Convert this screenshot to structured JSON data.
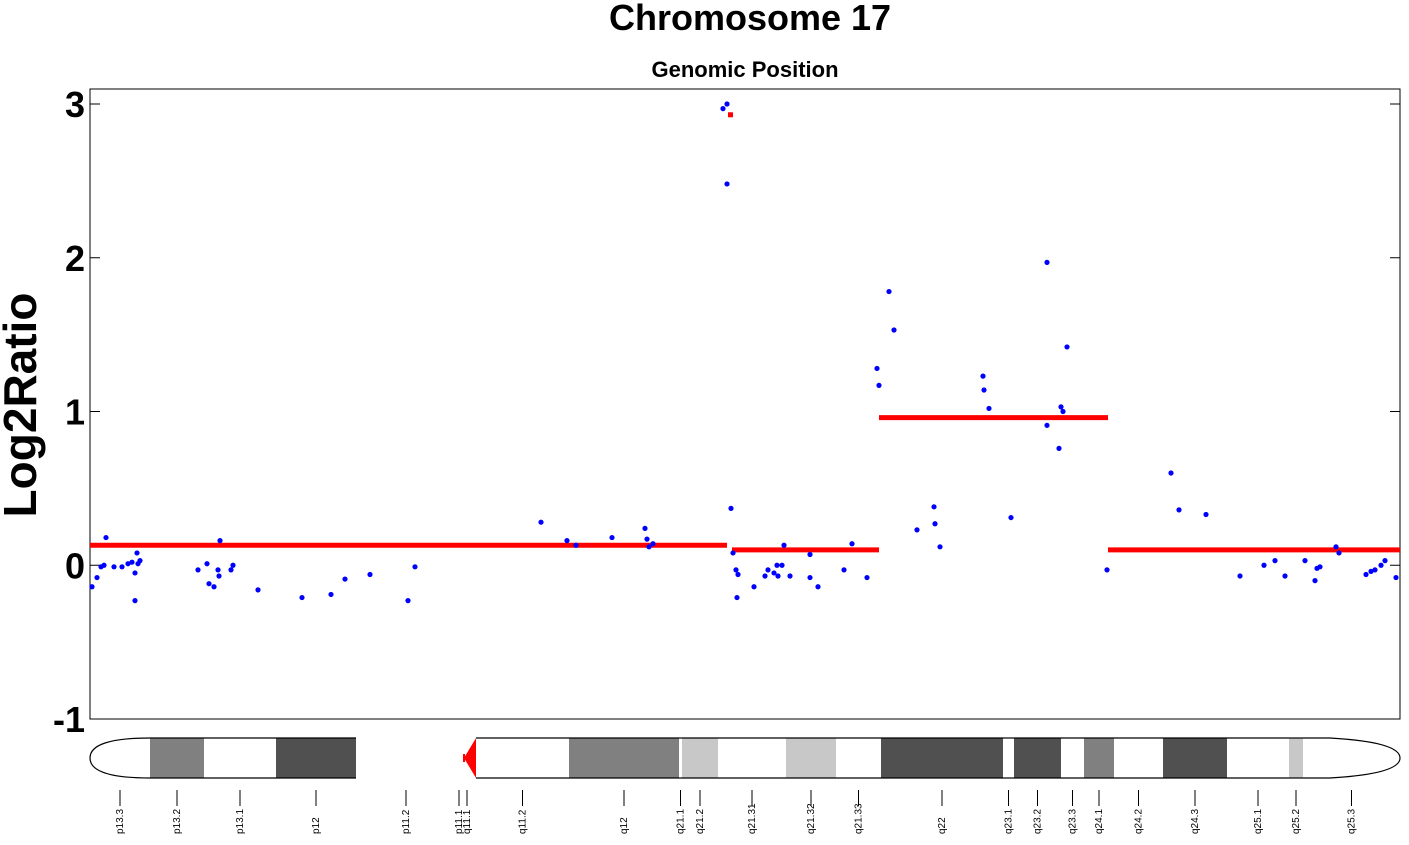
{
  "chart_data": {
    "type": "scatter",
    "title": "Chromosome 17",
    "subtitle": "Genomic Position",
    "xlabel": "Genomic Position",
    "ylabel": "Log2Ratio",
    "xlim": [
      0,
      1310
    ],
    "ylim": [
      -1,
      3
    ],
    "yticks": [
      -1,
      0,
      1,
      2,
      3
    ],
    "ytick_labels": [
      "-1",
      "0",
      "1",
      "2",
      "3"
    ],
    "grid": false,
    "colors": {
      "points": "#0000ff",
      "segments": "#ff0000",
      "centromere": "#ff0000"
    },
    "points": [
      [
        2,
        -0.14
      ],
      [
        7,
        -0.08
      ],
      [
        11,
        -0.01
      ],
      [
        14,
        0
      ],
      [
        16,
        0.18
      ],
      [
        24,
        -0.01
      ],
      [
        32,
        -0.01
      ],
      [
        38,
        0.01
      ],
      [
        42,
        0.02
      ],
      [
        45,
        -0.23
      ],
      [
        45,
        -0.05
      ],
      [
        47,
        0.08
      ],
      [
        48,
        0.01
      ],
      [
        50,
        0.03
      ],
      [
        108,
        -0.03
      ],
      [
        117,
        0.01
      ],
      [
        119,
        -0.12
      ],
      [
        124,
        -0.14
      ],
      [
        128,
        -0.03
      ],
      [
        129,
        -0.07
      ],
      [
        130,
        0.16
      ],
      [
        141,
        -0.03
      ],
      [
        143,
        0
      ],
      [
        168,
        -0.16
      ],
      [
        212,
        -0.21
      ],
      [
        241,
        -0.19
      ],
      [
        255,
        -0.09
      ],
      [
        280,
        -0.06
      ],
      [
        318,
        -0.23
      ],
      [
        325,
        -0.01
      ],
      [
        451,
        0.28
      ],
      [
        477,
        0.16
      ],
      [
        486,
        0.13
      ],
      [
        522,
        0.18
      ],
      [
        555,
        0.24
      ],
      [
        557,
        0.17
      ],
      [
        559,
        0.12
      ],
      [
        563,
        0.14
      ],
      [
        633,
        2.97
      ],
      [
        637,
        3.0
      ],
      [
        637,
        2.48
      ],
      [
        641,
        0.37
      ],
      [
        643,
        0.08
      ],
      [
        646,
        -0.03
      ],
      [
        648,
        -0.06
      ],
      [
        647,
        -0.21
      ],
      [
        664,
        -0.14
      ],
      [
        675,
        -0.07
      ],
      [
        678,
        -0.03
      ],
      [
        684,
        -0.05
      ],
      [
        687,
        0
      ],
      [
        688,
        -0.07
      ],
      [
        692,
        0
      ],
      [
        694,
        0.13
      ],
      [
        700,
        -0.07
      ],
      [
        720,
        0.07
      ],
      [
        720,
        -0.08
      ],
      [
        728,
        -0.14
      ],
      [
        754,
        -0.03
      ],
      [
        762,
        0.14
      ],
      [
        777,
        -0.08
      ],
      [
        787,
        1.28
      ],
      [
        789,
        1.17
      ],
      [
        799,
        1.78
      ],
      [
        804,
        1.53
      ],
      [
        827,
        0.23
      ],
      [
        844,
        0.38
      ],
      [
        845,
        0.27
      ],
      [
        850,
        0.12
      ],
      [
        893,
        1.23
      ],
      [
        894,
        1.14
      ],
      [
        899,
        1.02
      ],
      [
        921,
        0.31
      ],
      [
        957,
        1.97
      ],
      [
        957,
        0.91
      ],
      [
        969,
        0.76
      ],
      [
        971,
        1.03
      ],
      [
        973,
        1.0
      ],
      [
        977,
        1.42
      ],
      [
        1017,
        -0.03
      ],
      [
        1081,
        0.6
      ],
      [
        1089,
        0.36
      ],
      [
        1116,
        0.33
      ],
      [
        1150,
        -0.07
      ],
      [
        1174,
        0
      ],
      [
        1185,
        0.03
      ],
      [
        1195,
        -0.07
      ],
      [
        1215,
        0.03
      ],
      [
        1225,
        -0.1
      ],
      [
        1227,
        -0.02
      ],
      [
        1230,
        -0.01
      ],
      [
        1246,
        0.12
      ],
      [
        1249,
        0.08
      ],
      [
        1276,
        -0.06
      ],
      [
        1281,
        -0.04
      ],
      [
        1285,
        -0.03
      ],
      [
        1291,
        0
      ],
      [
        1295,
        0.03
      ],
      [
        1306,
        -0.08
      ]
    ],
    "segments": [
      {
        "start": 0,
        "end": 637,
        "value": 0.13
      },
      {
        "start": 638,
        "end": 643,
        "value": 2.93
      },
      {
        "start": 642,
        "end": 789,
        "value": 0.1
      },
      {
        "start": 789,
        "end": 1018,
        "value": 0.96
      },
      {
        "start": 1018,
        "end": 1310,
        "value": 0.1
      }
    ],
    "ideogram": {
      "stain_colors": {
        "gneg": "#ffffff",
        "gpos25": "#c8c8c8",
        "gpos50": "#808080",
        "gpos75": "#505050",
        "acen": "#ff0000"
      },
      "bands": [
        {
          "name": "p13.3",
          "start": 0,
          "end": 60,
          "stain": "gneg"
        },
        {
          "name": "p13.2",
          "start": 60,
          "end": 114,
          "stain": "gpos50"
        },
        {
          "name": "p13.1",
          "start": 114,
          "end": 186,
          "stain": "gneg"
        },
        {
          "name": "p12",
          "start": 186,
          "end": 266,
          "stain": "gpos75"
        },
        {
          "name": "p11.2",
          "start": 266,
          "end": 366,
          "stain": "gneg"
        },
        {
          "name": "p11.1",
          "start": 366,
          "end": 374,
          "stain": "acen"
        },
        {
          "name": "q11.1",
          "start": 374,
          "end": 386,
          "stain": "acen"
        },
        {
          "name": "q11.2",
          "start": 386,
          "end": 479,
          "stain": "gneg"
        },
        {
          "name": "q12",
          "start": 479,
          "end": 589,
          "stain": "gpos50"
        },
        {
          "name": "q21.1",
          "start": 589,
          "end": 592,
          "stain": "gneg"
        },
        {
          "name": "q21.2",
          "start": 592,
          "end": 628,
          "stain": "gpos25"
        },
        {
          "name": "q21.31",
          "start": 628,
          "end": 696,
          "stain": "gneg"
        },
        {
          "name": "q21.32",
          "start": 696,
          "end": 746,
          "stain": "gpos25"
        },
        {
          "name": "q21.33",
          "start": 746,
          "end": 791,
          "stain": "gneg"
        },
        {
          "name": "q22",
          "start": 791,
          "end": 913,
          "stain": "gpos75"
        },
        {
          "name": "q23.1",
          "start": 913,
          "end": 924,
          "stain": "gneg"
        },
        {
          "name": "q23.2",
          "start": 924,
          "end": 971,
          "stain": "gpos75"
        },
        {
          "name": "q23.3",
          "start": 971,
          "end": 994,
          "stain": "gneg"
        },
        {
          "name": "q24.1",
          "start": 994,
          "end": 1024,
          "stain": "gpos50"
        },
        {
          "name": "q24.2",
          "start": 1024,
          "end": 1073,
          "stain": "gneg"
        },
        {
          "name": "q24.3",
          "start": 1073,
          "end": 1137,
          "stain": "gpos75"
        },
        {
          "name": "q25.1",
          "start": 1137,
          "end": 1199,
          "stain": "gneg"
        },
        {
          "name": "q25.2",
          "start": 1199,
          "end": 1213,
          "stain": "gpos25"
        },
        {
          "name": "q25.3",
          "start": 1213,
          "end": 1310,
          "stain": "gneg"
        }
      ]
    }
  }
}
